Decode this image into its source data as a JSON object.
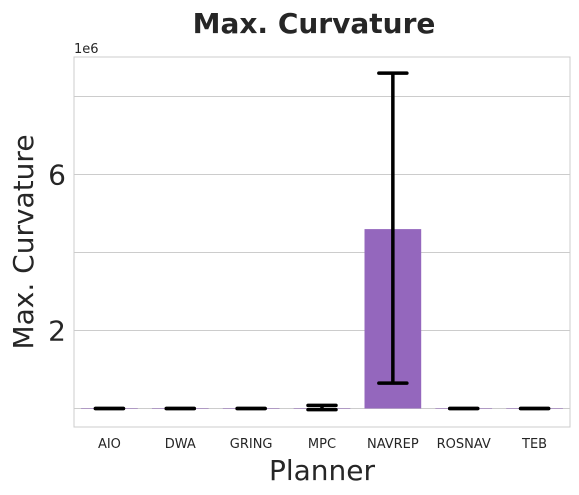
{
  "chart_data": {
    "type": "bar",
    "title": "Max. Curvature",
    "xlabel": "Planner",
    "ylabel": "Max. Curvature",
    "y_offset_label": "1e6",
    "categories": [
      "AIO",
      "DWA",
      "GRING",
      "MPC",
      "NAVREP",
      "ROSNAV",
      "TEB"
    ],
    "values": [
      0.0,
      0.0,
      0.0,
      0.0,
      4.6,
      0.0,
      0.0
    ],
    "error_low": [
      0.0,
      0.0,
      0.0,
      -0.03,
      0.65,
      0.0,
      0.0
    ],
    "error_high": [
      0.0,
      0.0,
      0.0,
      0.08,
      8.6,
      0.0,
      0.0
    ],
    "bar_color": "#9467bd",
    "yticks": [
      2,
      6
    ],
    "gridlines": [
      0,
      2,
      4,
      6,
      8
    ],
    "ylim": [
      -0.48,
      9.0
    ],
    "grid": true
  }
}
